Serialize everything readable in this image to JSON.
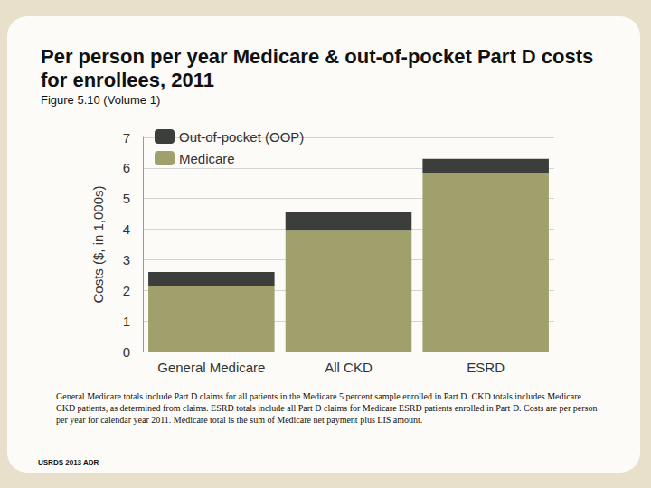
{
  "chart_data": {
    "type": "bar",
    "title": "Per person per year Medicare & out-of-pocket Part D costs for enrollees, 2011",
    "subtitle": "Figure 5.10 (Volume 1)",
    "y_label": "Costs ($, in 1,000s)",
    "categories": [
      "General Medicare",
      "All CKD",
      "ESRD"
    ],
    "series": [
      {
        "name": "Medicare",
        "color": "#a0a06c",
        "values": [
          2.15,
          3.95,
          5.85
        ]
      },
      {
        "name": "Out-of-pocket (OOP)",
        "color": "#3b3e3b",
        "values": [
          0.45,
          0.6,
          0.45
        ]
      }
    ],
    "stacked": true,
    "ylim": [
      0,
      7
    ],
    "yticks": [
      0,
      1,
      2,
      3,
      4,
      5,
      6,
      7
    ],
    "grid": true,
    "legend": "top-left",
    "annotations": [
      "General Medicare totals include Part D claims for all patients in the Medicare 5 percent sample enrolled in Part D. CKD totals includes Medicare CKD patients, as determined from claims. ESRD totals include all Part D claims for Medicare ESRD patients enrolled in Part D. Costs are per person per year for calendar year 2011. Medicare total is the sum of Medicare net payment plus LIS amount.",
      "USRDS 2013 ADR"
    ]
  }
}
